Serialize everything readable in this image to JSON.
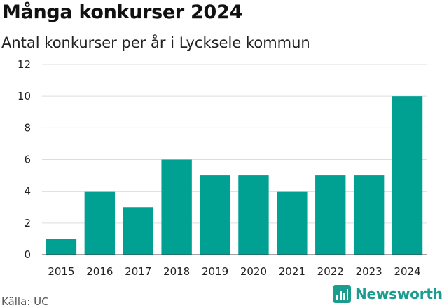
{
  "title": "Många konkurser 2024",
  "subtitle": "Antal konkurser per år i Lycksele kommun",
  "source": "Källa: UC",
  "brand": {
    "name": "Newsworthy",
    "icon": "newsworthy-logo-icon"
  },
  "colors": {
    "bar": "#00a093",
    "grid": "#dddddd",
    "brand": "#1a9c8f"
  },
  "chart_data": {
    "type": "bar",
    "categories": [
      "2015",
      "2016",
      "2017",
      "2018",
      "2019",
      "2020",
      "2021",
      "2022",
      "2023",
      "2024"
    ],
    "values": [
      1,
      4,
      3,
      6,
      5,
      5,
      4,
      5,
      5,
      10
    ],
    "title": "Många konkurser 2024",
    "subtitle": "Antal konkurser per år i Lycksele kommun",
    "xlabel": "",
    "ylabel": "",
    "ylim": [
      0,
      12
    ],
    "yticks": [
      0,
      2,
      4,
      6,
      8,
      10,
      12
    ],
    "grid": true,
    "legend": "none"
  }
}
